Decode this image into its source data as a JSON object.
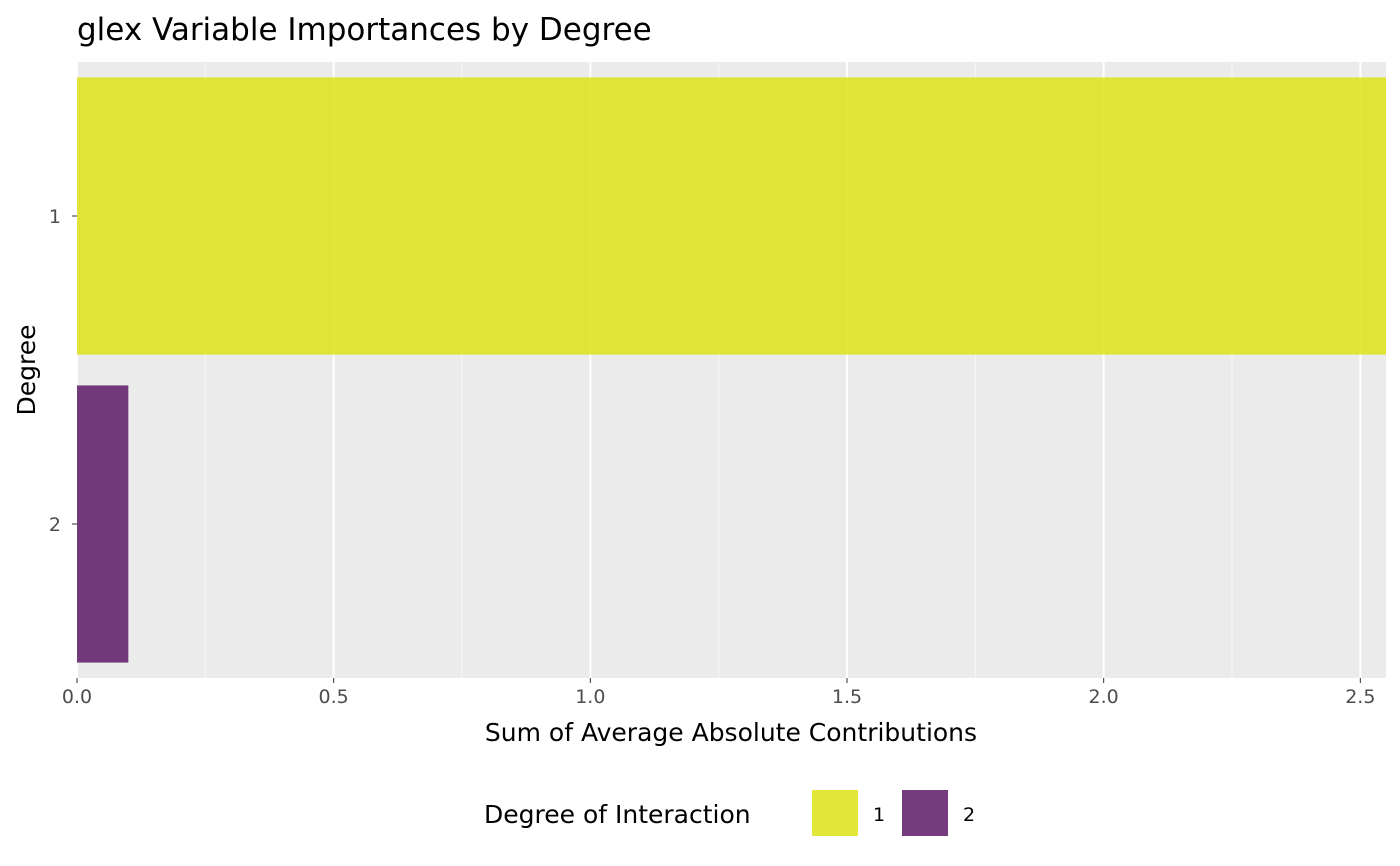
{
  "chart_data": {
    "type": "bar",
    "orientation": "horizontal",
    "title": "glex Variable Importances by Degree",
    "xlabel": "Sum of Average Absolute Contributions",
    "ylabel": "Degree",
    "categories": [
      "1",
      "2"
    ],
    "values": [
      2.55,
      0.1
    ],
    "xlim": [
      0,
      2.55
    ],
    "x_ticks": [
      "0.0",
      "0.5",
      "1.0",
      "1.5",
      "2.0",
      "2.5"
    ],
    "x_tick_values": [
      0,
      0.5,
      1.0,
      1.5,
      2.0,
      2.5
    ],
    "grid": true,
    "legend": {
      "title": "Degree of Interaction",
      "position": "bottom",
      "items": [
        {
          "label": "1",
          "color": "#DDE318"
        },
        {
          "label": "2",
          "color": "#5C1A66"
        }
      ]
    },
    "colors": {
      "panel_background": "#EBEBEB",
      "grid": "#FFFFFF",
      "bar_1": "#DDE318",
      "bar_2": "#5C1A66"
    }
  }
}
